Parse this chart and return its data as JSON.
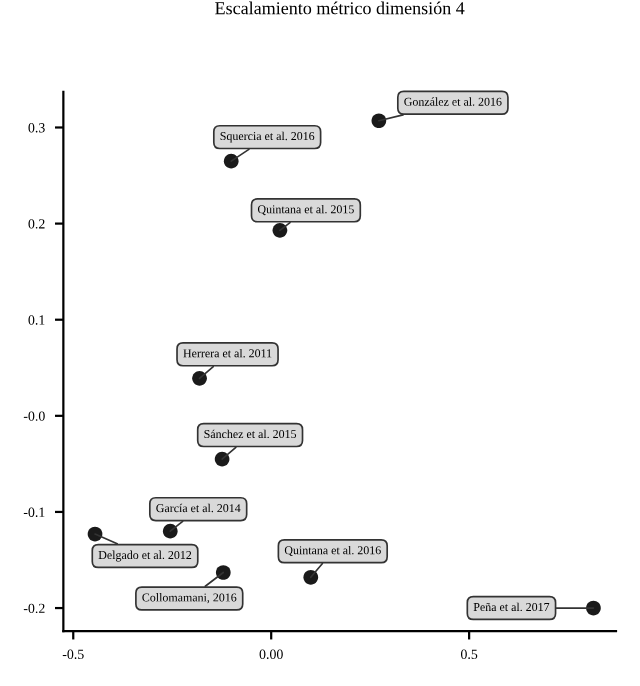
{
  "chart_data": {
    "type": "scatter",
    "title": "Escalamiento métrico dimensión 4",
    "x": [
      0.272,
      -0.101,
      0.022,
      -0.181,
      -0.124,
      -0.255,
      -0.445,
      -0.121,
      0.1,
      0.814
    ],
    "series": [
      {
        "color": "#1a1a1a",
        "values": [
          0.307,
          0.265,
          0.193,
          0.039,
          -0.045,
          -0.12,
          -0.123,
          -0.163,
          -0.168,
          -0.2
        ]
      }
    ],
    "annotations": [
      {
        "text": "González et al. 2016",
        "x": 0.272,
        "y": 0.307
      },
      {
        "text": "Squercia et al. 2016",
        "x": -0.101,
        "y": 0.265
      },
      {
        "text": "Quintana et al. 2015",
        "x": 0.022,
        "y": 0.193
      },
      {
        "text": "Herrera et al. 2011",
        "x": -0.181,
        "y": 0.039
      },
      {
        "text": "Sánchez et al. 2015",
        "x": -0.124,
        "y": -0.045
      },
      {
        "text": "García et al. 2014",
        "x": -0.255,
        "y": -0.12
      },
      {
        "text": "Delgado et al. 2012",
        "x": -0.445,
        "y": -0.123
      },
      {
        "text": "Collomamani, 2016",
        "x": -0.121,
        "y": -0.163
      },
      {
        "text": "Quintana et al. 2016",
        "x": 0.1,
        "y": -0.168
      },
      {
        "text": "Peña et al. 2017",
        "x": 0.814,
        "y": -0.2
      }
    ],
    "xlim": [
      -0.525,
      0.871
    ],
    "xticks": [
      -0.5,
      {
        "value": 0,
        "label": "0.00"
      },
      0.5
    ],
    "ylim": [
      -0.224,
      0.337
    ],
    "yticks": [
      -0.2,
      -0.1,
      {
        "value": 0,
        "label": "-0.0"
      },
      0.1,
      0.2,
      0.3
    ],
    "marker": "circle",
    "grid": false
  }
}
